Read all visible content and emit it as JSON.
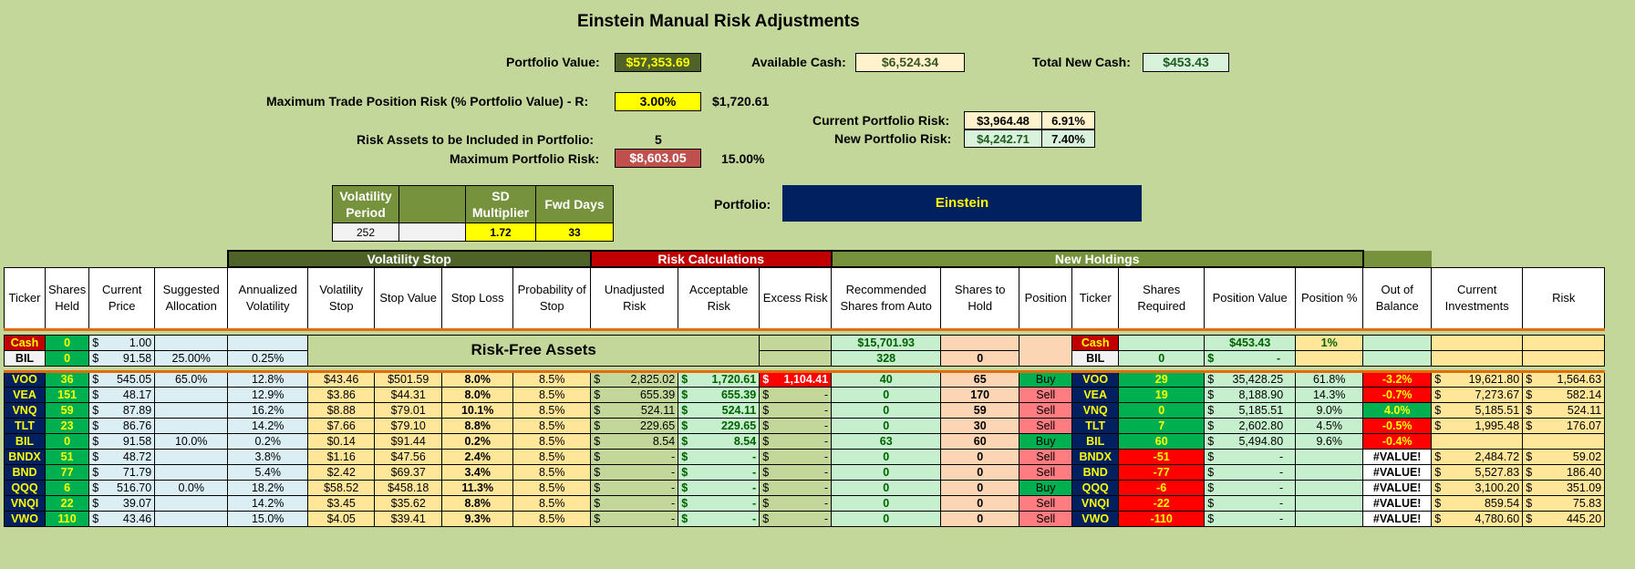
{
  "title": "Einstein Manual Risk Adjustments",
  "top": {
    "portfolio_value_label": "Portfolio Value:",
    "portfolio_value": "$57,353.69",
    "available_cash_label": "Available Cash:",
    "available_cash": "$6,524.34",
    "total_new_cash_label": "Total New Cash:",
    "total_new_cash": "$453.43",
    "max_trade_risk_label": "Maximum Trade Position Risk (% Portfolio Value) - R:",
    "max_trade_risk_pct": "3.00%",
    "max_trade_risk_amt": "$1,720.61",
    "current_risk_label": "Current Portfolio Risk:",
    "current_risk_amt": "$3,964.48",
    "current_risk_pct": "6.91%",
    "new_risk_label": "New Portfolio Risk:",
    "new_risk_amt": "$4,242.71",
    "new_risk_pct": "7.40%",
    "risk_assets_label": "Risk Assets to be Included in Portfolio:",
    "risk_assets_count": "5",
    "max_portfolio_risk_label": "Maximum Portfolio Risk:",
    "max_portfolio_risk_amt": "$8,603.05",
    "max_portfolio_risk_pct": "15.00%",
    "portfolio_label": "Portfolio:",
    "portfolio_name": "Einstein"
  },
  "vol_params": {
    "headers": [
      "Volatility Period",
      "",
      "SD Multiplier",
      "Fwd Days"
    ],
    "values": [
      "252",
      "",
      "1.72",
      "33"
    ]
  },
  "groups": {
    "volatility_stop": "Volatility Stop",
    "risk_calculations": "Risk Calculations",
    "new_holdings": "New Holdings"
  },
  "columns": [
    "Ticker",
    "Shares Held",
    "Current Price",
    "Suggested Allocation",
    "Annualized Volatility",
    "Volatility Stop",
    "Stop Value",
    "Stop Loss",
    "Probability of Stop",
    "Unadjusted Risk",
    "Acceptable Risk",
    "Excess Risk",
    "Recommended Shares from Auto",
    "Shares to Hold",
    "Position",
    "Ticker",
    "Shares Required",
    "Position Value",
    "Position %",
    "Out of Balance",
    "Current Investments",
    "Risk"
  ],
  "risk_free_label": "Risk-Free Assets",
  "cash_rows": [
    {
      "ticker": "Cash",
      "shares": "0",
      "price": "1.00",
      "alloc": "",
      "vol": "",
      "rec_shares": "$15,701.93",
      "hold": "",
      "ticker2": "Cash",
      "req": "",
      "pos_value": "$453.43",
      "pos_pct": "1%"
    },
    {
      "ticker": "BIL",
      "shares": "0",
      "price": "91.58",
      "alloc": "25.00%",
      "vol": "0.25%",
      "rec_shares": "328",
      "hold": "0",
      "ticker2": "BIL",
      "req": "0",
      "pos_value": "-",
      "pos_pct": ""
    }
  ],
  "rows": [
    {
      "ticker": "VOO",
      "shares": "36",
      "price": "545.05",
      "alloc": "65.0%",
      "vol": "12.8%",
      "vstop": "$43.46",
      "stop_value": "$501.59",
      "stop_loss": "8.0%",
      "prob": "8.5%",
      "unadj": "2,825.02",
      "accept": "1,720.61",
      "excess": "1,104.41",
      "rec": "40",
      "hold": "65",
      "position": "Buy",
      "ticker2": "VOO",
      "req": "29",
      "pos_value": "35,428.25",
      "pos_pct": "61.8%",
      "oob": "-3.2%",
      "curinv": "19,621.80",
      "risk": "1,564.63"
    },
    {
      "ticker": "VEA",
      "shares": "151",
      "price": "48.17",
      "alloc": "",
      "vol": "12.9%",
      "vstop": "$3.86",
      "stop_value": "$44.31",
      "stop_loss": "8.0%",
      "prob": "8.5%",
      "unadj": "655.39",
      "accept": "655.39",
      "excess": "-",
      "rec": "0",
      "hold": "170",
      "position": "Sell",
      "ticker2": "VEA",
      "req": "19",
      "pos_value": "8,188.90",
      "pos_pct": "14.3%",
      "oob": "-0.7%",
      "curinv": "7,273.67",
      "risk": "582.14"
    },
    {
      "ticker": "VNQ",
      "shares": "59",
      "price": "87.89",
      "alloc": "",
      "vol": "16.2%",
      "vstop": "$8.88",
      "stop_value": "$79.01",
      "stop_loss": "10.1%",
      "prob": "8.5%",
      "unadj": "524.11",
      "accept": "524.11",
      "excess": "-",
      "rec": "0",
      "hold": "59",
      "position": "Sell",
      "ticker2": "VNQ",
      "req": "0",
      "pos_value": "5,185.51",
      "pos_pct": "9.0%",
      "oob": "4.0%",
      "curinv": "5,185.51",
      "risk": "524.11"
    },
    {
      "ticker": "TLT",
      "shares": "23",
      "price": "86.76",
      "alloc": "",
      "vol": "14.2%",
      "vstop": "$7.66",
      "stop_value": "$79.10",
      "stop_loss": "8.8%",
      "prob": "8.5%",
      "unadj": "229.65",
      "accept": "229.65",
      "excess": "-",
      "rec": "0",
      "hold": "30",
      "position": "Sell",
      "ticker2": "TLT",
      "req": "7",
      "pos_value": "2,602.80",
      "pos_pct": "4.5%",
      "oob": "-0.5%",
      "curinv": "1,995.48",
      "risk": "176.07"
    },
    {
      "ticker": "BIL",
      "shares": "0",
      "price": "91.58",
      "alloc": "10.0%",
      "vol": "0.2%",
      "vstop": "$0.14",
      "stop_value": "$91.44",
      "stop_loss": "0.2%",
      "prob": "8.5%",
      "unadj": "8.54",
      "accept": "8.54",
      "excess": "-",
      "rec": "63",
      "hold": "60",
      "position": "Buy",
      "ticker2": "BIL",
      "req": "60",
      "pos_value": "5,494.80",
      "pos_pct": "9.6%",
      "oob": "-0.4%",
      "curinv": "",
      "risk": ""
    },
    {
      "ticker": "BNDX",
      "shares": "51",
      "price": "48.72",
      "alloc": "",
      "vol": "3.8%",
      "vstop": "$1.16",
      "stop_value": "$47.56",
      "stop_loss": "2.4%",
      "prob": "8.5%",
      "unadj": "-",
      "accept": "-",
      "excess": "-",
      "rec": "0",
      "hold": "0",
      "position": "Sell",
      "ticker2": "BNDX",
      "req": "-51",
      "pos_value": "-",
      "pos_pct": "",
      "oob": "#VALUE!",
      "curinv": "2,484.72",
      "risk": "59.02"
    },
    {
      "ticker": "BND",
      "shares": "77",
      "price": "71.79",
      "alloc": "",
      "vol": "5.4%",
      "vstop": "$2.42",
      "stop_value": "$69.37",
      "stop_loss": "3.4%",
      "prob": "8.5%",
      "unadj": "-",
      "accept": "-",
      "excess": "-",
      "rec": "0",
      "hold": "0",
      "position": "Sell",
      "ticker2": "BND",
      "req": "-77",
      "pos_value": "-",
      "pos_pct": "",
      "oob": "#VALUE!",
      "curinv": "5,527.83",
      "risk": "186.40"
    },
    {
      "ticker": "QQQ",
      "shares": "6",
      "price": "516.70",
      "alloc": "0.0%",
      "vol": "18.2%",
      "vstop": "$58.52",
      "stop_value": "$458.18",
      "stop_loss": "11.3%",
      "prob": "8.5%",
      "unadj": "-",
      "accept": "-",
      "excess": "-",
      "rec": "0",
      "hold": "0",
      "position": "Buy",
      "ticker2": "QQQ",
      "req": "-6",
      "pos_value": "-",
      "pos_pct": "",
      "oob": "#VALUE!",
      "curinv": "3,100.20",
      "risk": "351.09"
    },
    {
      "ticker": "VNQI",
      "shares": "22",
      "price": "39.07",
      "alloc": "",
      "vol": "14.2%",
      "vstop": "$3.45",
      "stop_value": "$35.62",
      "stop_loss": "8.8%",
      "prob": "8.5%",
      "unadj": "-",
      "accept": "-",
      "excess": "-",
      "rec": "0",
      "hold": "0",
      "position": "Sell",
      "ticker2": "VNQI",
      "req": "-22",
      "pos_value": "-",
      "pos_pct": "",
      "oob": "#VALUE!",
      "curinv": "859.54",
      "risk": "75.83"
    },
    {
      "ticker": "VWO",
      "shares": "110",
      "price": "43.46",
      "alloc": "",
      "vol": "15.0%",
      "vstop": "$4.05",
      "stop_value": "$39.41",
      "stop_loss": "9.3%",
      "prob": "8.5%",
      "unadj": "-",
      "accept": "-",
      "excess": "-",
      "rec": "0",
      "hold": "0",
      "position": "Sell",
      "ticker2": "VWO",
      "req": "-110",
      "pos_value": "-",
      "pos_pct": "",
      "oob": "#VALUE!",
      "curinv": "4,780.60",
      "risk": "445.20"
    }
  ],
  "colors": {
    "background": "#c4d79b",
    "navy": "#002060",
    "green_header": "#76923c",
    "red_header": "#c00000",
    "orange_line": "#e36c0a"
  }
}
